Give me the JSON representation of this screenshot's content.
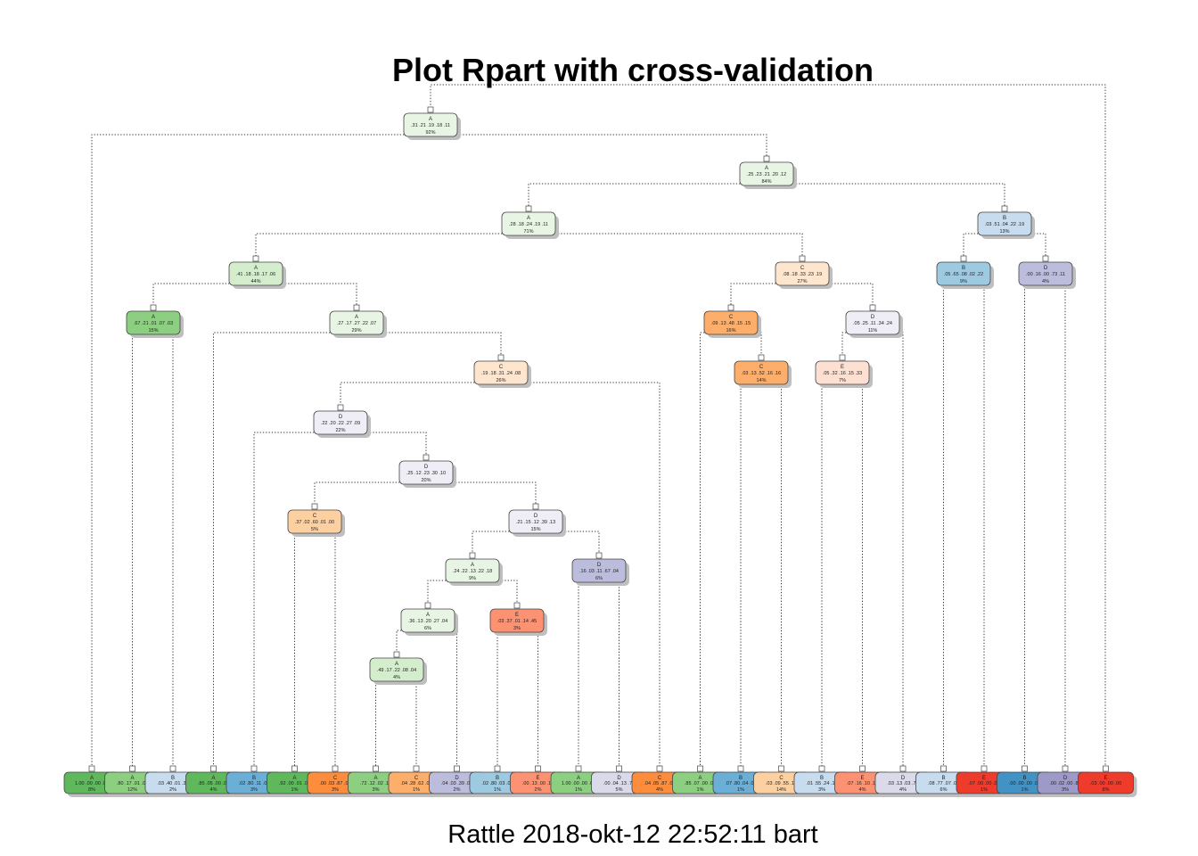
{
  "title": "Plot Rpart with cross-validation",
  "footer": "Rattle 2018-okt-12 22:52:11 bart",
  "colors": {
    "A": [
      "#e8f5e4",
      "#d4edcd",
      "#b7e0ad",
      "#8ccf80",
      "#5fb85c"
    ],
    "B": [
      "#e3edf7",
      "#c7dcef",
      "#9ecae1",
      "#6baed6",
      "#4292c6"
    ],
    "C": [
      "#fee6ce",
      "#fdd0a2",
      "#fdae6b",
      "#fd8d3c",
      "#f16913"
    ],
    "D": [
      "#efedf5",
      "#dadaeb",
      "#bcbddc",
      "#9e9ac8",
      "#807dba"
    ],
    "E": [
      "#fee0d2",
      "#fcbba1",
      "#fc9272",
      "#fb6a4a",
      "#ef3b2c"
    ]
  },
  "nodes": [
    {
      "id": "root",
      "cls": "A",
      "probs": ".31 .21 .19 .18 .11",
      "pct": "92%",
      "shade": 0
    },
    {
      "id": "n2",
      "cls": "A",
      "probs": ".25 .23 .21 .20 .12",
      "pct": "84%",
      "shade": 0
    },
    {
      "id": "n3",
      "cls": "A",
      "probs": ".28 .18 .24 .19 .11",
      "pct": "71%",
      "shade": 0
    },
    {
      "id": "n4",
      "cls": "B",
      "probs": ".03 .51 .04 .22 .19",
      "pct": "13%",
      "shade": 1
    },
    {
      "id": "n5",
      "cls": "A",
      "probs": ".41 .18 .18 .17 .06",
      "pct": "44%",
      "shade": 1
    },
    {
      "id": "n6",
      "cls": "C",
      "probs": ".08 .18 .33 .23 .19",
      "pct": "27%",
      "shade": 0
    },
    {
      "id": "n7",
      "cls": "B",
      "probs": ".05 .65 .08 .02 .22",
      "pct": "9%",
      "shade": 2
    },
    {
      "id": "n8",
      "cls": "D",
      "probs": ".00 .16 .00 .73 .11",
      "pct": "4%",
      "shade": 2
    },
    {
      "id": "n9",
      "cls": "A",
      "probs": ".67 .21 .01 .07 .03",
      "pct": "15%",
      "shade": 3
    },
    {
      "id": "n10",
      "cls": "A",
      "probs": ".27 .17 .27 .22 .07",
      "pct": "29%",
      "shade": 0
    },
    {
      "id": "n11",
      "cls": "C",
      "probs": ".09 .13 .48 .15 .15",
      "pct": "16%",
      "shade": 2
    },
    {
      "id": "n12",
      "cls": "D",
      "probs": ".05 .25 .11 .34 .24",
      "pct": "11%",
      "shade": 0
    },
    {
      "id": "n13",
      "cls": "C",
      "probs": ".19 .18 .31 .24 .08",
      "pct": "26%",
      "shade": 0
    },
    {
      "id": "n14",
      "cls": "C",
      "probs": ".03 .13 .52 .16 .16",
      "pct": "14%",
      "shade": 2
    },
    {
      "id": "n15",
      "cls": "E",
      "probs": ".05 .32 .16 .15 .33",
      "pct": "7%",
      "shade": 0
    },
    {
      "id": "n16",
      "cls": "D",
      "probs": ".22 .20 .22 .27 .09",
      "pct": "22%",
      "shade": 0
    },
    {
      "id": "n17",
      "cls": "D",
      "probs": ".25 .12 .23 .30 .10",
      "pct": "20%",
      "shade": 0
    },
    {
      "id": "n18",
      "cls": "C",
      "probs": ".37 .02 .60 .01 .00",
      "pct": "5%",
      "shade": 1
    },
    {
      "id": "n19",
      "cls": "D",
      "probs": ".21 .15 .12 .39 .13",
      "pct": "15%",
      "shade": 0
    },
    {
      "id": "n20",
      "cls": "A",
      "probs": ".24 .22 .13 .22 .18",
      "pct": "9%",
      "shade": 0
    },
    {
      "id": "n21",
      "cls": "D",
      "probs": ".16 .03 .11 .67 .04",
      "pct": "6%",
      "shade": 2
    },
    {
      "id": "n22",
      "cls": "A",
      "probs": ".36 .13 .20 .27 .04",
      "pct": "6%",
      "shade": 0
    },
    {
      "id": "n23",
      "cls": "E",
      "probs": ".03 .37 .01 .14 .45",
      "pct": "3%",
      "shade": 2
    },
    {
      "id": "n24",
      "cls": "A",
      "probs": ".49 .17 .22 .08 .04",
      "pct": "4%",
      "shade": 1
    }
  ],
  "leaves": [
    {
      "cls": "A",
      "probs": "1.00 .00 .00 .00",
      "pct": "8%",
      "shade": 4
    },
    {
      "cls": "A",
      "probs": ".80 .17 .01 .01",
      "pct": "12%",
      "shade": 3
    },
    {
      "cls": "B",
      "probs": ".03 .40 .01 .32",
      "pct": "2%",
      "shade": 1
    },
    {
      "cls": "A",
      "probs": ".85 .05 .00 .06",
      "pct": "4%",
      "shade": 4
    },
    {
      "cls": "B",
      "probs": ".02 .80 .11 .05",
      "pct": "3%",
      "shade": 3
    },
    {
      "cls": "A",
      "probs": ".92 .00 .01 .00",
      "pct": "1%",
      "shade": 4
    },
    {
      "cls": "C",
      "probs": ".00 .03 .87 .07",
      "pct": "3%",
      "shade": 3
    },
    {
      "cls": "A",
      "probs": ".72 .12 .02 .12",
      "pct": "3%",
      "shade": 3
    },
    {
      "cls": "C",
      "probs": ".04 .28 .62 .02",
      "pct": "1%",
      "shade": 2
    },
    {
      "cls": "D",
      "probs": ".04 .03 .39 .03",
      "pct": "2%",
      "shade": 2
    },
    {
      "cls": "B",
      "probs": ".02 .80 .03 .06",
      "pct": "1%",
      "shade": 2
    },
    {
      "cls": "E",
      "probs": ".00 .13 .00 .13",
      "pct": "2%",
      "shade": 2
    },
    {
      "cls": "A",
      "probs": "1.00 .00 .00 .00",
      "pct": "1%",
      "shade": 3
    },
    {
      "cls": "D",
      "probs": ".00 .04 .13 .76",
      "pct": "5%",
      "shade": 1
    },
    {
      "cls": "C",
      "probs": ".04 .05 .87 .02",
      "pct": "4%",
      "shade": 3
    },
    {
      "cls": "A",
      "probs": ".85 .07 .00 .08",
      "pct": "1%",
      "shade": 3
    },
    {
      "cls": "B",
      "probs": ".07 .80 .04 .09",
      "pct": "1%",
      "shade": 3
    },
    {
      "cls": "C",
      "probs": ".03 .09 .55 .14",
      "pct": "14%",
      "shade": 1
    },
    {
      "cls": "B",
      "probs": ".01 .55 .24 .13",
      "pct": "3%",
      "shade": 1
    },
    {
      "cls": "E",
      "probs": ".07 .16 .10 .14",
      "pct": "4%",
      "shade": 2
    },
    {
      "cls": "D",
      "probs": ".03 .13 .03 .76",
      "pct": "4%",
      "shade": 1
    },
    {
      "cls": "B",
      "probs": ".08 .77 .07 .03",
      "pct": "6%",
      "shade": 1
    },
    {
      "cls": "E",
      "probs": ".07 .00 .00 .00",
      "pct": "1%",
      "shade": 4
    },
    {
      "cls": "B",
      "probs": ".00 .00 .00 .00",
      "pct": "1%",
      "shade": 4
    },
    {
      "cls": "D",
      "probs": ".00 .02 .00 .89",
      "pct": "3%",
      "shade": 3
    },
    {
      "cls": "E",
      "probs": ".03 .00 .00 .00",
      "pct": "8%",
      "shade": 4
    }
  ]
}
